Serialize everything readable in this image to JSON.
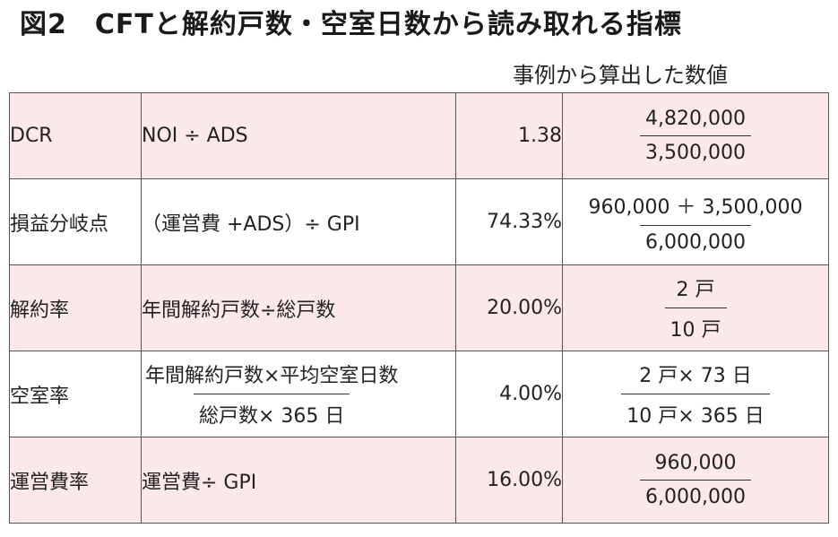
{
  "title": "図2　CFTと解約戸数・空室日数から読み取れる指標",
  "subheader": "事例から算出した数値",
  "rows": [
    {
      "name": "DCR",
      "formula": "NOI ÷ ADS",
      "value": "1.38",
      "example_num": "4,820,000",
      "example_den": "3,500,000"
    },
    {
      "name": "損益分岐点",
      "formula": "（運営費 +ADS）÷ GPI",
      "value": "74.33%",
      "example_num": "960,000 ＋ 3,500,000",
      "example_den": "6,000,000"
    },
    {
      "name": "解約率",
      "formula": "年間解約戸数÷総戸数",
      "value": "20.00%",
      "example_num": "2 戸",
      "example_den": "10 戸"
    },
    {
      "name": "空室率",
      "formula_num": "年間解約戸数×平均空室日数",
      "formula_den": "総戸数× 365 日",
      "value": "4.00%",
      "example_num": "2 戸× 73 日",
      "example_den": "10 戸× 365 日"
    },
    {
      "name": "運営費率",
      "formula": "運営費÷ GPI",
      "value": "16.00%",
      "example_num": "960,000",
      "example_den": "6,000,000"
    }
  ]
}
